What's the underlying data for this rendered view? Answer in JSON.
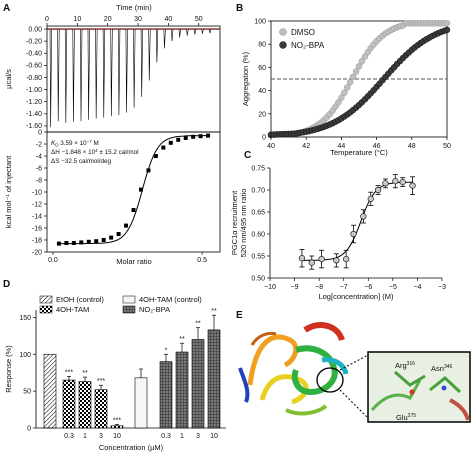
{
  "figure": {
    "panels": [
      "A",
      "B",
      "C",
      "D",
      "E"
    ]
  },
  "chart_data": [
    {
      "id": "A-top",
      "type": "line",
      "title": "",
      "xlabel": "Time (min)",
      "ylabel": "μcal/s",
      "xticks": [
        "0",
        "10",
        "20",
        "30",
        "40",
        "50"
      ],
      "yticks": [
        "0.00",
        "-0.20",
        "-0.40",
        "-0.60",
        "-0.80",
        "-1.00",
        "-1.20",
        "-1.40",
        "-1.60"
      ],
      "xlim": [
        0,
        57
      ],
      "ylim": [
        -1.7,
        0.05
      ],
      "baseline_color": "#e0201a",
      "injection_times": [
        1,
        3.5,
        6,
        8.5,
        11,
        13.5,
        16,
        18.5,
        21,
        23.5,
        26,
        28.5,
        31,
        33.5,
        36,
        38.5,
        41,
        43.5,
        46,
        48.5,
        51,
        53.5
      ],
      "peak_values": [
        -1.62,
        -1.52,
        -1.55,
        -1.53,
        -1.52,
        -1.5,
        -1.48,
        -1.46,
        -1.44,
        -1.42,
        -1.38,
        -1.3,
        -1.12,
        -0.85,
        -0.55,
        -0.32,
        -0.2,
        -0.14,
        -0.11,
        -0.09,
        -0.08,
        -0.07
      ]
    },
    {
      "id": "A-bottom",
      "type": "scatter",
      "xlabel": "Molar ratio",
      "ylabel": "kcal mol⁻¹ of injectant",
      "xticks": [
        "0.0",
        "0.5"
      ],
      "yticks": [
        "0",
        "-2",
        "-4",
        "-6",
        "-8",
        "-10",
        "-12",
        "-14",
        "-16",
        "-18",
        "-20"
      ],
      "xlim": [
        -0.02,
        0.56
      ],
      "ylim": [
        -20,
        0
      ],
      "annotations": [
        "K_D 3.59 × 10⁻⁷ M",
        "ΔH −1.848 × 10⁴ ± 15.2 cal/mol",
        "ΔS −32.5 cal/mol/deg"
      ],
      "kd_line": "K",
      "kd_sub": "D",
      "kd_rest": " 3.59 × 10",
      "kd_exp": "−7",
      "kd_unit": " M",
      "dh_line_a": "ΔH −1.848 × 10",
      "dh_exp": "4",
      "dh_line_b": " ± 15.2 cal/mol",
      "ds_line": "ΔS −32.5 cal/mol/deg",
      "x": [
        0.02,
        0.045,
        0.07,
        0.095,
        0.12,
        0.145,
        0.17,
        0.195,
        0.22,
        0.245,
        0.27,
        0.295,
        0.32,
        0.345,
        0.37,
        0.395,
        0.42,
        0.445,
        0.47,
        0.495,
        0.52
      ],
      "y": [
        -18.6,
        -18.5,
        -18.5,
        -18.4,
        -18.3,
        -18.2,
        -18.0,
        -17.6,
        -17.0,
        -15.6,
        -13.0,
        -9.6,
        -6.4,
        -4.0,
        -2.6,
        -1.8,
        -1.3,
        -1.0,
        -0.8,
        -0.7,
        -0.6
      ]
    },
    {
      "id": "B",
      "type": "scatter",
      "xlabel": "Temperature (°C)",
      "ylabel": "Aggregation (%)",
      "xticks": [
        "40",
        "42",
        "44",
        "46",
        "48",
        "50"
      ],
      "yticks": [
        "0",
        "20",
        "40",
        "60",
        "80",
        "100"
      ],
      "xlim": [
        40,
        50
      ],
      "ylim": [
        0,
        100
      ],
      "dashed_line_y": 50,
      "legend_position": "top-left",
      "series": [
        {
          "name": "DMSO",
          "color": "#bfbfbf",
          "tm": 44.6,
          "width": 0.9
        },
        {
          "name": "NO₂-BPA",
          "color": "#3a3a3a",
          "tm": 46.4,
          "width": 1.45
        }
      ]
    },
    {
      "id": "C",
      "type": "scatter",
      "xlabel": "Log[concentration] (M)",
      "ylabel": "PGC1α recruitment",
      "ylabel2": "520 nm/495 nm ratio",
      "xticks": [
        "−10",
        "−9",
        "−8",
        "−7",
        "−6",
        "−5",
        "−4",
        "−3"
      ],
      "yticks": [
        "0.50",
        "0.55",
        "0.60",
        "0.65",
        "0.70",
        "0.75"
      ],
      "xlim": [
        -10,
        -3
      ],
      "ylim": [
        0.5,
        0.75
      ],
      "x": [
        -8.7,
        -8.3,
        -7.9,
        -7.3,
        -6.9,
        -6.6,
        -6.2,
        -5.9,
        -5.6,
        -5.3,
        -4.9,
        -4.6,
        -4.2
      ],
      "y": [
        0.545,
        0.535,
        0.543,
        0.54,
        0.543,
        0.6,
        0.64,
        0.68,
        0.7,
        0.715,
        0.72,
        0.718,
        0.71
      ],
      "err": [
        0.02,
        0.015,
        0.02,
        0.015,
        0.02,
        0.02,
        0.015,
        0.015,
        0.01,
        0.01,
        0.015,
        0.01,
        0.02
      ]
    },
    {
      "id": "D",
      "type": "bar",
      "xlabel": "Concentration (μM)",
      "ylabel": "Response (%)",
      "yticks": [
        "0",
        "50",
        "100",
        "150"
      ],
      "ylim": [
        0,
        160
      ],
      "legend_position": "top",
      "legend": [
        "EtOH (control)",
        "4OH-TAM",
        "4OH-TAM (control)",
        "NO₂-BPA"
      ],
      "categories": [
        "",
        "0.3",
        "1",
        "3",
        "10",
        "",
        "0.3",
        "1",
        "3",
        "10"
      ],
      "values": [
        100,
        65,
        63,
        52,
        3,
        68,
        90,
        103,
        120,
        133
      ],
      "err": [
        0,
        5,
        6,
        6,
        2,
        12,
        10,
        12,
        16,
        20
      ],
      "signif": [
        "",
        "***",
        "**",
        "***",
        "***",
        "",
        "*",
        "**",
        "**",
        "**"
      ]
    }
  ],
  "panel_b_legend": [
    "DMSO",
    "NO₂-BPA"
  ],
  "panel_e": {
    "labels": [
      "Arg",
      "316",
      "Asn",
      "346",
      "Glu",
      "275"
    ]
  }
}
